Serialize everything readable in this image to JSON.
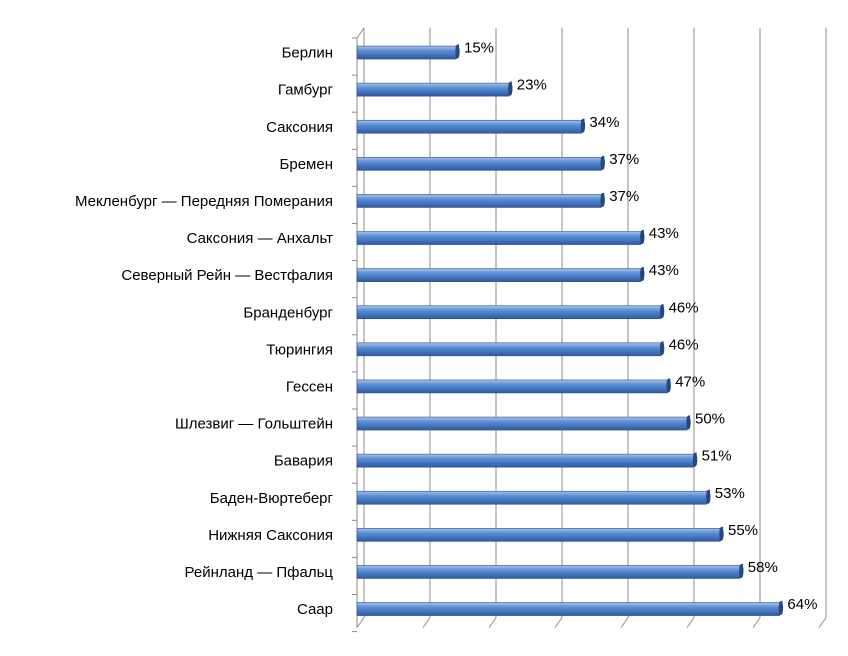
{
  "chart_data": {
    "type": "bar",
    "orientation": "horizontal",
    "categories": [
      "Берлин",
      "Гамбург",
      "Саксония",
      "Бремен",
      "Мекленбург — Передняя Померания",
      "Саксония — Анхальт",
      "Северный Рейн — Вестфалия",
      "Бранденбург",
      "Тюрингия",
      "Гессен",
      "Шлезвиг — Гольштейн",
      "Бавария",
      "Баден-Вюртеберг",
      "Нижняя Саксония",
      "Рейнланд — Пфальц",
      "Саар"
    ],
    "values": [
      15,
      23,
      34,
      37,
      37,
      43,
      43,
      46,
      46,
      47,
      50,
      51,
      53,
      55,
      58,
      64
    ],
    "value_labels": [
      "15%",
      "23%",
      "34%",
      "37%",
      "37%",
      "43%",
      "43%",
      "46%",
      "46%",
      "47%",
      "50%",
      "51%",
      "53%",
      "55%",
      "58%",
      "64%"
    ],
    "xlim": [
      0,
      70
    ],
    "x_grid_step": 10,
    "grid": true,
    "bar_color": "#4f81bd",
    "title": "",
    "xlabel": "",
    "ylabel": ""
  }
}
